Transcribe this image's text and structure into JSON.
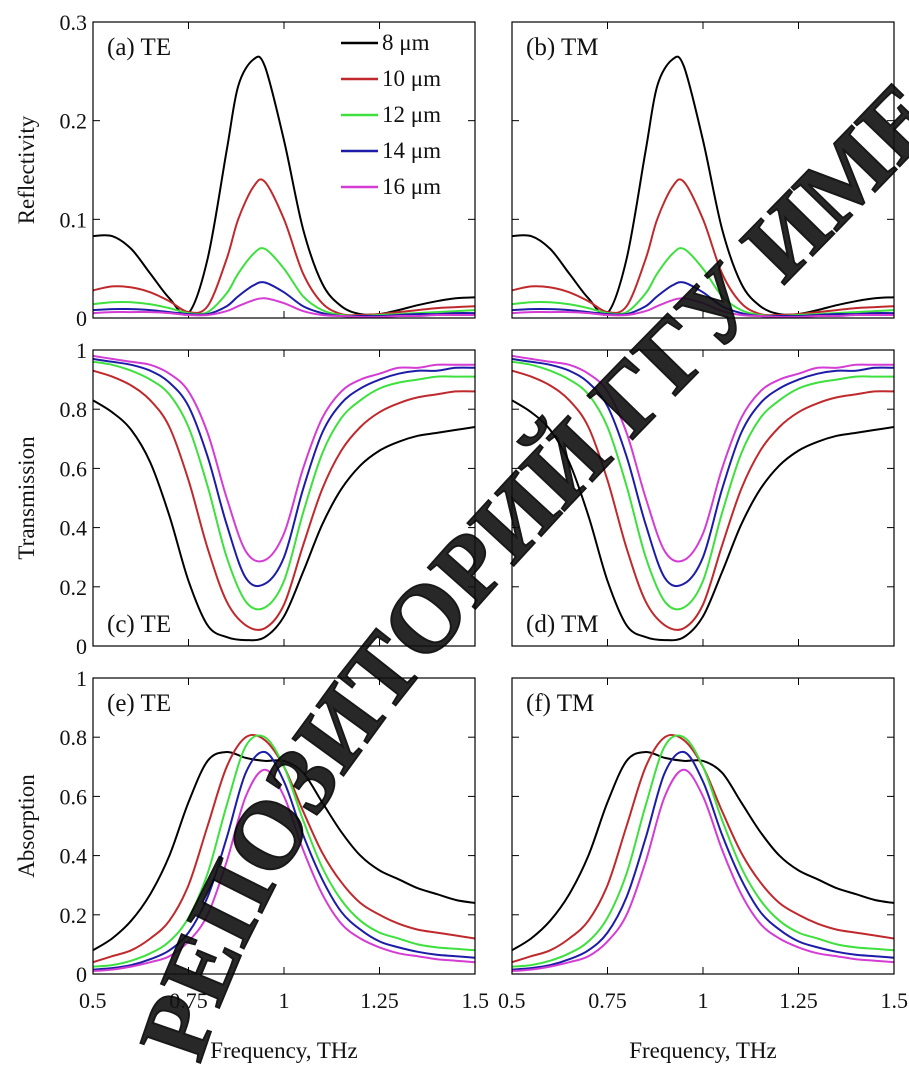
{
  "watermark": {
    "text": "РЕПОЗИТОРИЙ ГГУ ИМЕНИ Ф. СКОРИНЫ",
    "color": "#000000"
  },
  "series": [
    {
      "name": "8 μm",
      "color": "#000000"
    },
    {
      "name": "10 μm",
      "color": "#c0292c"
    },
    {
      "name": "12 μm",
      "color": "#3ee03e"
    },
    {
      "name": "14 μm",
      "color": "#1c1ca8"
    },
    {
      "name": "16 μm",
      "color": "#d43cd4"
    }
  ],
  "chart_data": [
    {
      "id": "a",
      "type": "line",
      "panel_label": "(a)  TE",
      "xlabel": "",
      "ylabel": "Reflectivity",
      "xlim": [
        0.5,
        1.5
      ],
      "ylim": [
        0,
        0.3
      ],
      "yticks": [
        "0",
        "0.1",
        "0.2",
        "0.3"
      ],
      "xticks": [],
      "legend": "top-center",
      "x": [
        0.5,
        0.55,
        0.6,
        0.65,
        0.7,
        0.75,
        0.8,
        0.85,
        0.88,
        0.92,
        0.95,
        1.0,
        1.05,
        1.1,
        1.15,
        1.2,
        1.25,
        1.3,
        1.35,
        1.4,
        1.45,
        1.5
      ],
      "series": [
        {
          "name": "8 μm",
          "values": [
            0.083,
            0.083,
            0.07,
            0.045,
            0.02,
            0.005,
            0.06,
            0.17,
            0.235,
            0.262,
            0.255,
            0.18,
            0.09,
            0.035,
            0.012,
            0.004,
            0.004,
            0.008,
            0.013,
            0.017,
            0.02,
            0.021
          ]
        },
        {
          "name": "10 μm",
          "values": [
            0.028,
            0.032,
            0.031,
            0.026,
            0.017,
            0.006,
            0.012,
            0.06,
            0.1,
            0.133,
            0.138,
            0.1,
            0.045,
            0.015,
            0.004,
            0.003,
            0.004,
            0.006,
            0.008,
            0.01,
            0.011,
            0.012
          ]
        },
        {
          "name": "12 μm",
          "values": [
            0.014,
            0.016,
            0.016,
            0.014,
            0.01,
            0.005,
            0.006,
            0.025,
            0.045,
            0.065,
            0.07,
            0.05,
            0.022,
            0.008,
            0.003,
            0.002,
            0.003,
            0.004,
            0.005,
            0.006,
            0.007,
            0.008
          ]
        },
        {
          "name": "14 μm",
          "values": [
            0.008,
            0.009,
            0.009,
            0.008,
            0.006,
            0.004,
            0.004,
            0.012,
            0.022,
            0.033,
            0.036,
            0.026,
            0.012,
            0.005,
            0.002,
            0.002,
            0.002,
            0.003,
            0.004,
            0.004,
            0.005,
            0.005
          ]
        },
        {
          "name": "16 μm",
          "values": [
            0.005,
            0.006,
            0.006,
            0.006,
            0.005,
            0.003,
            0.003,
            0.007,
            0.012,
            0.018,
            0.02,
            0.015,
            0.007,
            0.003,
            0.002,
            0.001,
            0.001,
            0.002,
            0.002,
            0.003,
            0.003,
            0.003
          ]
        }
      ]
    },
    {
      "id": "b",
      "type": "line",
      "panel_label": "(b)  TM",
      "xlabel": "",
      "ylabel": "",
      "xlim": [
        0.5,
        1.5
      ],
      "ylim": [
        0,
        0.3
      ],
      "yticks": [],
      "xticks": [],
      "x": [
        0.5,
        0.55,
        0.6,
        0.65,
        0.7,
        0.75,
        0.8,
        0.85,
        0.88,
        0.92,
        0.95,
        1.0,
        1.05,
        1.1,
        1.15,
        1.2,
        1.25,
        1.3,
        1.35,
        1.4,
        1.45,
        1.5
      ],
      "series": [
        {
          "name": "8 μm",
          "values": [
            0.083,
            0.083,
            0.07,
            0.045,
            0.02,
            0.005,
            0.06,
            0.17,
            0.235,
            0.262,
            0.255,
            0.18,
            0.09,
            0.035,
            0.012,
            0.004,
            0.004,
            0.008,
            0.013,
            0.017,
            0.02,
            0.021
          ]
        },
        {
          "name": "10 μm",
          "values": [
            0.028,
            0.032,
            0.031,
            0.026,
            0.017,
            0.006,
            0.012,
            0.06,
            0.1,
            0.133,
            0.138,
            0.1,
            0.045,
            0.015,
            0.004,
            0.003,
            0.004,
            0.006,
            0.008,
            0.01,
            0.011,
            0.012
          ]
        },
        {
          "name": "12 μm",
          "values": [
            0.014,
            0.016,
            0.016,
            0.014,
            0.01,
            0.005,
            0.006,
            0.025,
            0.045,
            0.065,
            0.07,
            0.05,
            0.022,
            0.008,
            0.003,
            0.002,
            0.003,
            0.004,
            0.005,
            0.006,
            0.007,
            0.008
          ]
        },
        {
          "name": "14 μm",
          "values": [
            0.008,
            0.009,
            0.009,
            0.008,
            0.006,
            0.004,
            0.004,
            0.012,
            0.022,
            0.033,
            0.036,
            0.026,
            0.012,
            0.005,
            0.002,
            0.002,
            0.002,
            0.003,
            0.004,
            0.004,
            0.005,
            0.005
          ]
        },
        {
          "name": "16 μm",
          "values": [
            0.005,
            0.006,
            0.006,
            0.006,
            0.005,
            0.003,
            0.003,
            0.007,
            0.012,
            0.018,
            0.02,
            0.015,
            0.007,
            0.003,
            0.002,
            0.001,
            0.001,
            0.002,
            0.002,
            0.003,
            0.003,
            0.003
          ]
        }
      ]
    },
    {
      "id": "c",
      "type": "line",
      "panel_label": "(c) TE",
      "xlabel": "",
      "ylabel": "Transmission",
      "xlim": [
        0.5,
        1.5
      ],
      "ylim": [
        0,
        1
      ],
      "yticks": [
        "0",
        "0.2",
        "0.4",
        "0.6",
        "0.8",
        "1"
      ],
      "xticks": [],
      "x": [
        0.5,
        0.55,
        0.6,
        0.65,
        0.7,
        0.75,
        0.8,
        0.85,
        0.9,
        0.95,
        1.0,
        1.05,
        1.1,
        1.15,
        1.2,
        1.25,
        1.3,
        1.35,
        1.4,
        1.45,
        1.5
      ],
      "series": [
        {
          "name": "8 μm",
          "values": [
            0.83,
            0.79,
            0.73,
            0.62,
            0.44,
            0.22,
            0.07,
            0.03,
            0.02,
            0.03,
            0.1,
            0.25,
            0.41,
            0.53,
            0.61,
            0.66,
            0.69,
            0.71,
            0.72,
            0.73,
            0.74
          ]
        },
        {
          "name": "10 μm",
          "values": [
            0.93,
            0.91,
            0.88,
            0.83,
            0.74,
            0.56,
            0.33,
            0.15,
            0.07,
            0.06,
            0.14,
            0.34,
            0.53,
            0.66,
            0.74,
            0.79,
            0.82,
            0.84,
            0.85,
            0.86,
            0.86
          ]
        },
        {
          "name": "12 μm",
          "values": [
            0.96,
            0.95,
            0.93,
            0.9,
            0.85,
            0.74,
            0.54,
            0.3,
            0.15,
            0.13,
            0.22,
            0.45,
            0.65,
            0.77,
            0.83,
            0.87,
            0.89,
            0.9,
            0.91,
            0.91,
            0.91
          ]
        },
        {
          "name": "14 μm",
          "values": [
            0.97,
            0.96,
            0.95,
            0.93,
            0.89,
            0.81,
            0.64,
            0.41,
            0.23,
            0.21,
            0.3,
            0.53,
            0.72,
            0.82,
            0.87,
            0.9,
            0.92,
            0.93,
            0.93,
            0.94,
            0.94
          ]
        },
        {
          "name": "16 μm",
          "values": [
            0.98,
            0.97,
            0.96,
            0.95,
            0.92,
            0.86,
            0.72,
            0.5,
            0.32,
            0.29,
            0.38,
            0.6,
            0.77,
            0.86,
            0.9,
            0.92,
            0.94,
            0.94,
            0.95,
            0.95,
            0.95
          ]
        }
      ]
    },
    {
      "id": "d",
      "type": "line",
      "panel_label": "(d) TM",
      "xlabel": "",
      "ylabel": "",
      "xlim": [
        0.5,
        1.5
      ],
      "ylim": [
        0,
        1
      ],
      "yticks": [],
      "xticks": [],
      "x": [
        0.5,
        0.55,
        0.6,
        0.65,
        0.7,
        0.75,
        0.8,
        0.85,
        0.9,
        0.95,
        1.0,
        1.05,
        1.1,
        1.15,
        1.2,
        1.25,
        1.3,
        1.35,
        1.4,
        1.45,
        1.5
      ],
      "series": [
        {
          "name": "8 μm",
          "values": [
            0.83,
            0.79,
            0.73,
            0.62,
            0.44,
            0.22,
            0.07,
            0.03,
            0.02,
            0.03,
            0.1,
            0.25,
            0.41,
            0.53,
            0.61,
            0.66,
            0.69,
            0.71,
            0.72,
            0.73,
            0.74
          ]
        },
        {
          "name": "10 μm",
          "values": [
            0.93,
            0.91,
            0.88,
            0.83,
            0.74,
            0.56,
            0.33,
            0.15,
            0.07,
            0.06,
            0.14,
            0.34,
            0.53,
            0.66,
            0.74,
            0.79,
            0.82,
            0.84,
            0.85,
            0.86,
            0.86
          ]
        },
        {
          "name": "12 μm",
          "values": [
            0.96,
            0.95,
            0.93,
            0.9,
            0.85,
            0.74,
            0.54,
            0.3,
            0.15,
            0.13,
            0.22,
            0.45,
            0.65,
            0.77,
            0.83,
            0.87,
            0.89,
            0.9,
            0.91,
            0.91,
            0.91
          ]
        },
        {
          "name": "14 μm",
          "values": [
            0.97,
            0.96,
            0.95,
            0.93,
            0.89,
            0.81,
            0.64,
            0.41,
            0.23,
            0.21,
            0.3,
            0.53,
            0.72,
            0.82,
            0.87,
            0.9,
            0.92,
            0.93,
            0.93,
            0.94,
            0.94
          ]
        },
        {
          "name": "16 μm",
          "values": [
            0.98,
            0.97,
            0.96,
            0.95,
            0.92,
            0.86,
            0.72,
            0.5,
            0.32,
            0.29,
            0.38,
            0.6,
            0.77,
            0.86,
            0.9,
            0.92,
            0.94,
            0.94,
            0.95,
            0.95,
            0.95
          ]
        }
      ]
    },
    {
      "id": "e",
      "type": "line",
      "panel_label": "(e) TE",
      "xlabel": "Frequency, THz",
      "ylabel": "Absorption",
      "xlim": [
        0.5,
        1.5
      ],
      "ylim": [
        0,
        1
      ],
      "yticks": [
        "0",
        "0.2",
        "0.4",
        "0.6",
        "0.8",
        "1"
      ],
      "xticks": [
        "0.5",
        "0.75",
        "1",
        "1.25",
        "1.5"
      ],
      "x": [
        0.5,
        0.55,
        0.6,
        0.65,
        0.7,
        0.75,
        0.8,
        0.85,
        0.9,
        0.95,
        1.0,
        1.05,
        1.1,
        1.15,
        1.2,
        1.25,
        1.3,
        1.35,
        1.4,
        1.45,
        1.5
      ],
      "series": [
        {
          "name": "8 μm",
          "values": [
            0.08,
            0.12,
            0.18,
            0.27,
            0.4,
            0.58,
            0.72,
            0.75,
            0.73,
            0.72,
            0.72,
            0.68,
            0.58,
            0.48,
            0.4,
            0.35,
            0.32,
            0.29,
            0.27,
            0.25,
            0.24
          ]
        },
        {
          "name": "10 μm",
          "values": [
            0.04,
            0.06,
            0.08,
            0.12,
            0.18,
            0.3,
            0.5,
            0.7,
            0.8,
            0.79,
            0.7,
            0.55,
            0.41,
            0.31,
            0.24,
            0.2,
            0.17,
            0.15,
            0.14,
            0.13,
            0.12
          ]
        },
        {
          "name": "12 μm",
          "values": [
            0.025,
            0.03,
            0.045,
            0.07,
            0.11,
            0.19,
            0.34,
            0.57,
            0.77,
            0.8,
            0.7,
            0.52,
            0.36,
            0.25,
            0.18,
            0.14,
            0.12,
            0.1,
            0.09,
            0.085,
            0.08
          ]
        },
        {
          "name": "14 μm",
          "values": [
            0.015,
            0.02,
            0.03,
            0.05,
            0.08,
            0.14,
            0.26,
            0.46,
            0.68,
            0.75,
            0.65,
            0.47,
            0.32,
            0.21,
            0.15,
            0.11,
            0.09,
            0.075,
            0.065,
            0.06,
            0.055
          ]
        },
        {
          "name": "16 μm",
          "values": [
            0.01,
            0.015,
            0.025,
            0.04,
            0.06,
            0.11,
            0.2,
            0.38,
            0.6,
            0.69,
            0.6,
            0.42,
            0.27,
            0.17,
            0.12,
            0.09,
            0.07,
            0.06,
            0.05,
            0.045,
            0.04
          ]
        }
      ]
    },
    {
      "id": "f",
      "type": "line",
      "panel_label": "(f) TM",
      "xlabel": "Frequency, THz",
      "ylabel": "",
      "xlim": [
        0.5,
        1.5
      ],
      "ylim": [
        0,
        1
      ],
      "yticks": [],
      "xticks": [
        "0.5",
        "0.75",
        "1",
        "1.25",
        "1.5"
      ],
      "x": [
        0.5,
        0.55,
        0.6,
        0.65,
        0.7,
        0.75,
        0.8,
        0.85,
        0.9,
        0.95,
        1.0,
        1.05,
        1.1,
        1.15,
        1.2,
        1.25,
        1.3,
        1.35,
        1.4,
        1.45,
        1.5
      ],
      "series": [
        {
          "name": "8 μm",
          "values": [
            0.08,
            0.12,
            0.18,
            0.27,
            0.4,
            0.58,
            0.72,
            0.75,
            0.73,
            0.72,
            0.72,
            0.68,
            0.58,
            0.48,
            0.4,
            0.35,
            0.32,
            0.29,
            0.27,
            0.25,
            0.24
          ]
        },
        {
          "name": "10 μm",
          "values": [
            0.04,
            0.06,
            0.08,
            0.12,
            0.18,
            0.3,
            0.5,
            0.7,
            0.8,
            0.79,
            0.7,
            0.55,
            0.41,
            0.31,
            0.24,
            0.2,
            0.17,
            0.15,
            0.14,
            0.13,
            0.12
          ]
        },
        {
          "name": "12 μm",
          "values": [
            0.025,
            0.03,
            0.045,
            0.07,
            0.11,
            0.19,
            0.34,
            0.57,
            0.77,
            0.8,
            0.7,
            0.52,
            0.36,
            0.25,
            0.18,
            0.14,
            0.12,
            0.1,
            0.09,
            0.085,
            0.08
          ]
        },
        {
          "name": "14 μm",
          "values": [
            0.015,
            0.02,
            0.03,
            0.05,
            0.08,
            0.14,
            0.26,
            0.46,
            0.68,
            0.75,
            0.65,
            0.47,
            0.32,
            0.21,
            0.15,
            0.11,
            0.09,
            0.075,
            0.065,
            0.06,
            0.055
          ]
        },
        {
          "name": "16 μm",
          "values": [
            0.01,
            0.015,
            0.025,
            0.04,
            0.06,
            0.11,
            0.2,
            0.38,
            0.6,
            0.69,
            0.6,
            0.42,
            0.27,
            0.17,
            0.12,
            0.09,
            0.07,
            0.06,
            0.05,
            0.045,
            0.04
          ]
        }
      ]
    }
  ]
}
